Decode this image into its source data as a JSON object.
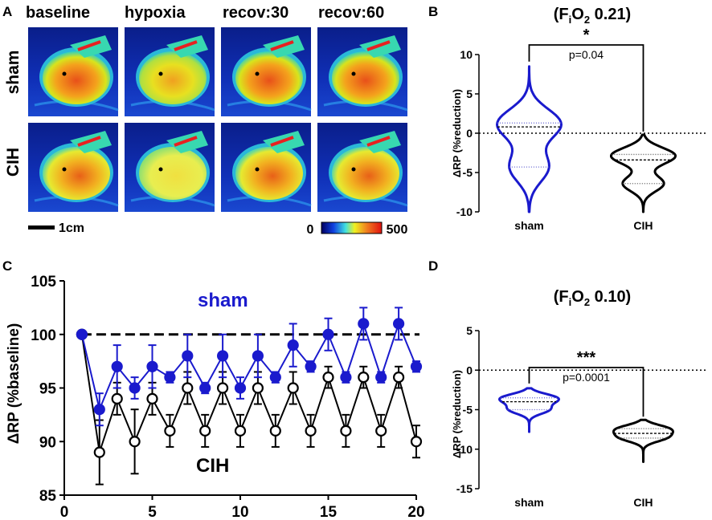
{
  "panel_labels": {
    "a": "A",
    "b": "B",
    "c": "C",
    "d": "D"
  },
  "panel_a": {
    "columns": [
      "baseline",
      "hypoxia",
      "recov:30",
      "recov:60"
    ],
    "rows": [
      "sham",
      "CIH"
    ],
    "scale_bar_label": "1cm",
    "colorbar": {
      "min_label": "0",
      "max_label": "500"
    }
  },
  "chart_data": [
    {
      "id": "B",
      "type": "violin",
      "title_base": "(F",
      "title_sub": "i",
      "title_mid": "O",
      "title_sub2": "2",
      "title_end": " 0.21)",
      "ylabel": "ΔRP  (%reduction)",
      "categories": [
        "sham",
        "CIH"
      ],
      "ylim": [
        -10,
        10
      ],
      "yticks": [
        "10",
        "5",
        "0",
        "-5",
        "-10"
      ],
      "series": [
        {
          "name": "sham",
          "color": "#1a1acd",
          "min": -10,
          "max": 8.5,
          "median": 0.8,
          "q1": -4.3,
          "q3": 1.3
        },
        {
          "name": "CIH",
          "color": "#000000",
          "min": -10,
          "max": -0.2,
          "median": -3.4,
          "q1": -6.4,
          "q3": -2.7
        }
      ],
      "significance": "*",
      "p_value": "p=0.04"
    },
    {
      "id": "C",
      "type": "line",
      "ylabel": "ΔRP (%baseline)",
      "xlim": [
        0,
        20
      ],
      "ylim": [
        85,
        105
      ],
      "xticks": [
        "0",
        "5",
        "10",
        "15",
        "20"
      ],
      "yticks": [
        "105",
        "100",
        "95",
        "90",
        "85"
      ],
      "reference_line": 100,
      "series": [
        {
          "name": "sham",
          "color": "#1a1acd",
          "x": [
            1,
            2,
            3,
            4,
            5,
            6,
            7,
            8,
            9,
            10,
            11,
            12,
            13,
            14,
            15,
            16,
            17,
            18,
            19,
            20
          ],
          "values": [
            100,
            93,
            97,
            95,
            97,
            96,
            98,
            95,
            98,
            95,
            98,
            96,
            99,
            97,
            100,
            96,
            101,
            96,
            101,
            97
          ],
          "errors": [
            0,
            1.5,
            2,
            1,
            2,
            0.5,
            2,
            0.5,
            2,
            1,
            2,
            0.5,
            2,
            0.5,
            1.5,
            0.5,
            1.5,
            0.5,
            1.5,
            0.5
          ]
        },
        {
          "name": "CIH",
          "color": "#000000",
          "x": [
            1,
            2,
            3,
            4,
            5,
            6,
            7,
            8,
            9,
            10,
            11,
            12,
            13,
            14,
            15,
            16,
            17,
            18,
            19,
            20
          ],
          "values": [
            100,
            89,
            94,
            90,
            94,
            91,
            95,
            91,
            95,
            91,
            95,
            91,
            95,
            91,
            96,
            91,
            96,
            91,
            96,
            90
          ],
          "errors": [
            0,
            3,
            1.5,
            3,
            1.5,
            1.5,
            1.5,
            1.5,
            1.5,
            1.5,
            1.5,
            1.5,
            1.5,
            1.5,
            1,
            1.5,
            1,
            1.5,
            1,
            1.5
          ]
        }
      ],
      "legend_sham": "sham",
      "legend_cih": "CIH"
    },
    {
      "id": "D",
      "type": "violin",
      "title_base": "(F",
      "title_sub": "i",
      "title_mid": "O",
      "title_sub2": "2",
      "title_end": " 0.10)",
      "ylabel": "ΔRP  (%reduction)",
      "categories": [
        "sham",
        "CIH"
      ],
      "ylim": [
        -15,
        5
      ],
      "yticks": [
        "5",
        "0",
        "-5",
        "-10",
        "-15"
      ],
      "series": [
        {
          "name": "sham",
          "color": "#1a1acd",
          "min": -7.8,
          "max": -2.3,
          "median": -4,
          "q1": -5,
          "q3": -3.5
        },
        {
          "name": "CIH",
          "color": "#000000",
          "min": -11.6,
          "max": -6.3,
          "median": -8,
          "q1": -8.6,
          "q3": -7.4
        }
      ],
      "significance": "***",
      "p_value": "p=0.0001"
    }
  ]
}
